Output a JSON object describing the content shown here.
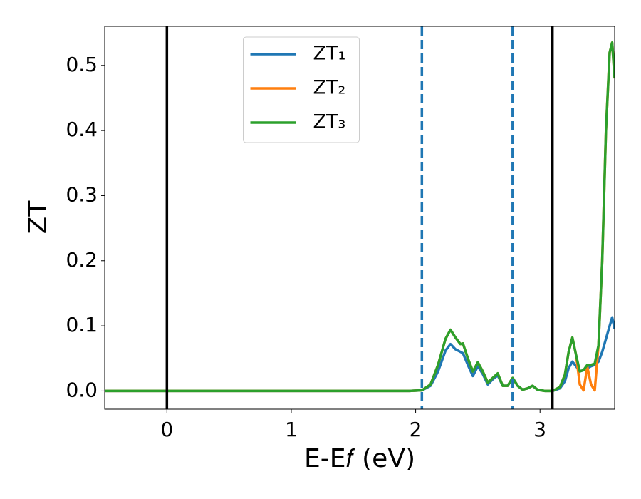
{
  "chart_data": {
    "type": "line",
    "xlabel": "E-E𝑓 (eV)",
    "ylabel": "ZT",
    "xlim": [
      -0.5,
      3.6
    ],
    "ylim": [
      -0.028,
      0.56
    ],
    "xticks": [
      0,
      1,
      2,
      3
    ],
    "yticks": [
      {
        "value": 0,
        "label": "0.0"
      },
      0.1,
      0.2,
      0.3,
      0.4,
      0.5
    ],
    "legend": "upper center",
    "x": [
      -0.5,
      0,
      0.5,
      1,
      1.5,
      1.95,
      2.05,
      2.12,
      2.18,
      2.24,
      2.28,
      2.32,
      2.36,
      2.38,
      2.42,
      2.46,
      2.5,
      2.54,
      2.58,
      2.62,
      2.66,
      2.7,
      2.74,
      2.78,
      2.82,
      2.86,
      2.9,
      2.94,
      2.98,
      3.04,
      3.1,
      3.16,
      3.2,
      3.23,
      3.26,
      3.29,
      3.32,
      3.35,
      3.38,
      3.41,
      3.44,
      3.47,
      3.5,
      3.53,
      3.56,
      3.58,
      3.6
    ],
    "series": [
      {
        "name": "ZT₁",
        "color": "#1f77b4",
        "values": [
          0,
          0,
          0,
          0,
          0,
          0,
          0.001,
          0.008,
          0.03,
          0.062,
          0.072,
          0.064,
          0.06,
          0.058,
          0.04,
          0.023,
          0.038,
          0.026,
          0.01,
          0.018,
          0.024,
          0.008,
          0.008,
          0.02,
          0.008,
          0.002,
          0.004,
          0.008,
          0.002,
          0,
          0,
          0.004,
          0.015,
          0.035,
          0.045,
          0.038,
          0.03,
          0.032,
          0.035,
          0.038,
          0.04,
          0.045,
          0.06,
          0.08,
          0.1,
          0.113,
          0.095
        ]
      },
      {
        "name": "ZT₂",
        "color": "#ff7f0e",
        "values": [
          0,
          0,
          0,
          0,
          0,
          0,
          0.001,
          0.01,
          0.04,
          0.08,
          0.094,
          0.082,
          0.072,
          0.073,
          0.05,
          0.03,
          0.044,
          0.03,
          0.013,
          0.02,
          0.027,
          0.008,
          0.008,
          0.02,
          0.008,
          0.002,
          0.004,
          0.008,
          0.002,
          0,
          0,
          0.006,
          0.025,
          0.06,
          0.082,
          0.055,
          0.01,
          0.001,
          0.037,
          0.01,
          0.001,
          0.07,
          0.2,
          0.4,
          0.52,
          0.535,
          0.48
        ]
      },
      {
        "name": "ZT₃",
        "color": "#2ca02c",
        "values": [
          0,
          0,
          0,
          0,
          0,
          0,
          0.001,
          0.01,
          0.04,
          0.08,
          0.094,
          0.082,
          0.072,
          0.073,
          0.05,
          0.03,
          0.044,
          0.03,
          0.013,
          0.02,
          0.027,
          0.008,
          0.008,
          0.02,
          0.008,
          0.002,
          0.004,
          0.008,
          0.002,
          0,
          0,
          0.006,
          0.025,
          0.06,
          0.082,
          0.055,
          0.03,
          0.032,
          0.04,
          0.04,
          0.042,
          0.07,
          0.2,
          0.4,
          0.52,
          0.535,
          0.48
        ]
      }
    ],
    "vlines": [
      {
        "x": 0,
        "color": "#000000",
        "style": "solid"
      },
      {
        "x": 2.05,
        "color": "#1f77b4",
        "style": "dashed"
      },
      {
        "x": 2.78,
        "color": "#1f77b4",
        "style": "dashed"
      },
      {
        "x": 3.1,
        "color": "#000000",
        "style": "solid"
      }
    ]
  }
}
